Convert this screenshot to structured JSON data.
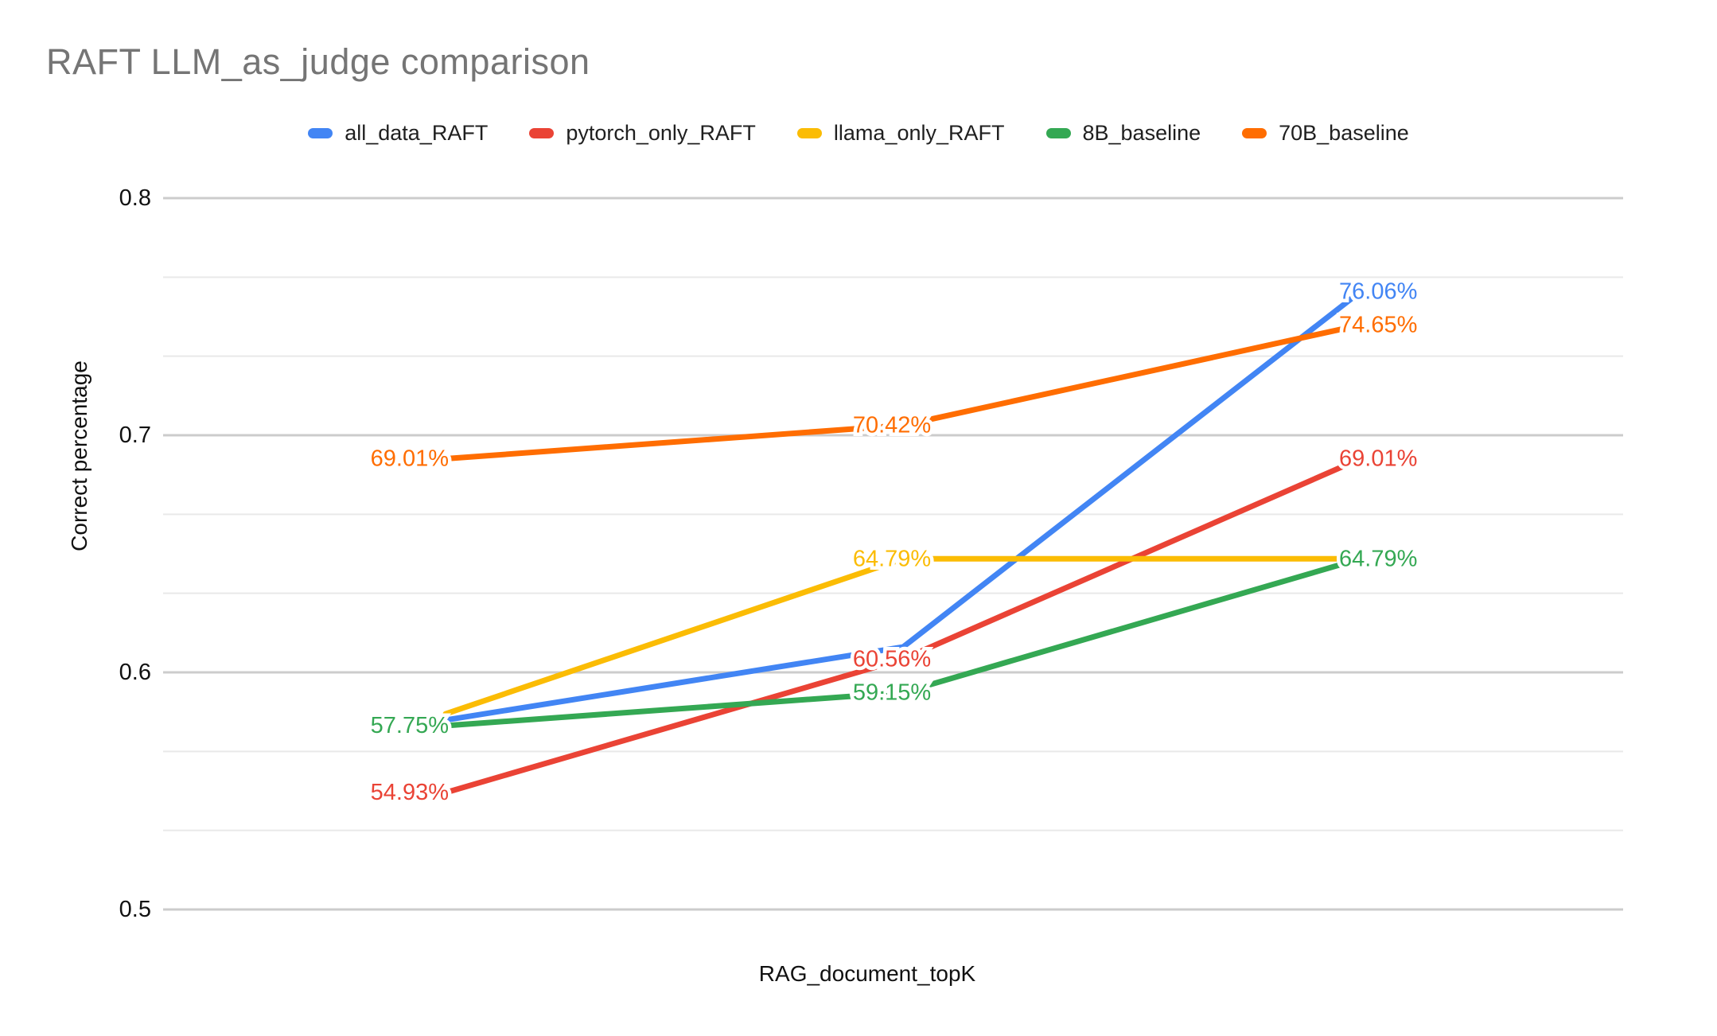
{
  "chart_data": {
    "type": "line",
    "title": "RAFT LLM_as_judge comparison",
    "xlabel": "RAG_document_topK",
    "ylabel": "Correct percentage",
    "y_tick_labels": [
      "0.8",
      "0.7",
      "0.6",
      "0.5"
    ],
    "y_range": [
      0.5,
      0.8
    ],
    "grid": true,
    "gridline_step": 0.03333,
    "legend_position": "top",
    "n_points_per_series": 3,
    "x_tick_labels_shown": false,
    "series": [
      {
        "name": "all_data_RAFT",
        "color": "#4285F4",
        "values": [
          0.5799,
          0.6107,
          0.7606
        ],
        "point_labels": [
          null,
          null,
          {
            "text": "76.06%",
            "pos": "right"
          }
        ]
      },
      {
        "name": "pytorch_only_RAFT",
        "color": "#EA4335",
        "values": [
          0.5493,
          0.6056,
          0.6901
        ],
        "point_labels": [
          {
            "text": "54.93%",
            "pos": "left"
          },
          {
            "text": "60.56%",
            "pos": "mid"
          },
          {
            "text": "69.01%",
            "pos": "right"
          }
        ]
      },
      {
        "name": "llama_only_RAFT",
        "color": "#FBBC04",
        "values": [
          0.5825,
          0.6479,
          0.6479
        ],
        "point_labels": [
          null,
          {
            "text": "64.79%",
            "pos": "mid"
          },
          null
        ]
      },
      {
        "name": "8B_baseline",
        "color": "#34A853",
        "values": [
          0.5775,
          0.5915,
          0.6479
        ],
        "point_labels": [
          {
            "text": "57.75%",
            "pos": "left"
          },
          {
            "text": "59.15%",
            "pos": "mid"
          },
          {
            "text": "64.79%",
            "pos": "right"
          }
        ]
      },
      {
        "name": "70B_baseline",
        "color": "#FF6D01",
        "values": [
          0.6901,
          0.7042,
          0.7465
        ],
        "point_labels": [
          {
            "text": "69.01%",
            "pos": "left"
          },
          {
            "text": "70.42%",
            "pos": "mid"
          },
          {
            "text": "74.65%",
            "pos": "right"
          }
        ]
      }
    ],
    "note": "unlabeled point values estimated from gridlines"
  }
}
